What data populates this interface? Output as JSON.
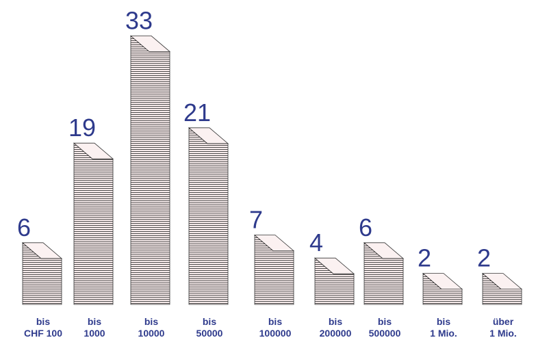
{
  "chart_data": {
    "type": "stack",
    "categories": [
      [
        "bis",
        "CHF 100"
      ],
      [
        "bis",
        "1000"
      ],
      [
        "bis",
        "10000"
      ],
      [
        "bis",
        "50000"
      ],
      [
        "bis",
        "100000"
      ],
      [
        "bis",
        "200000"
      ],
      [
        "bis",
        "500000"
      ],
      [
        "bis",
        "1 Mio."
      ],
      [
        "über",
        "1 Mio."
      ]
    ],
    "values": [
      6,
      19,
      33,
      21,
      7,
      4,
      6,
      2,
      2
    ],
    "color": "#2e3a8c"
  }
}
